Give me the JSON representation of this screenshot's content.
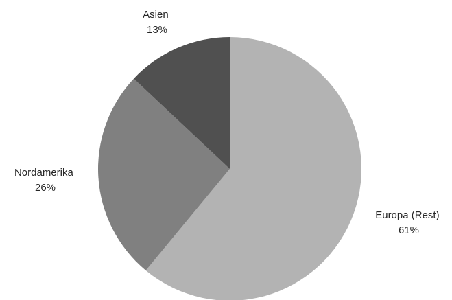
{
  "chart_data": {
    "type": "pie",
    "title": "",
    "start_angle_deg": 0,
    "direction": "clockwise",
    "legend": "none",
    "slices": [
      {
        "label": "Europa (Rest)",
        "value": 61,
        "value_label": "61%",
        "color": "#b3b3b3"
      },
      {
        "label": "Nordamerika",
        "value": 26,
        "value_label": "26%",
        "color": "#808080"
      },
      {
        "label": "Asien",
        "value": 13,
        "value_label": "13%",
        "color": "#505050"
      }
    ]
  }
}
